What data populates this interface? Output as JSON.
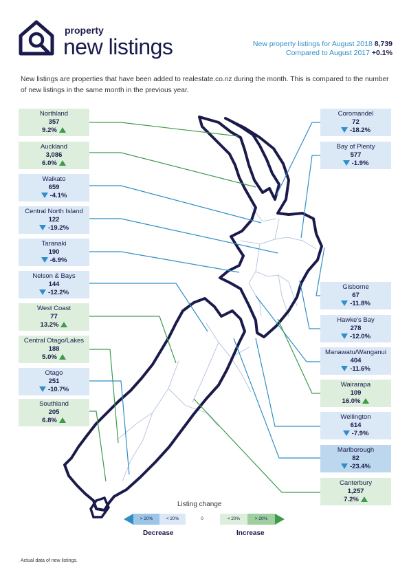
{
  "brand": {
    "small": "property",
    "big": "new listings"
  },
  "stats": {
    "line1_label": "New property listings for August 2018",
    "line1_value": "8,739",
    "line2_label": "Compared to August 2017",
    "line2_value": "+0.1%"
  },
  "intro": "New listings are properties that have been added to realestate.co.nz during the month. This is compared to the number of new listings in the same month in the previous year.",
  "colors": {
    "navy": "#1a1b4b",
    "increase": "#3d9a4b",
    "decrease": "#2f8ec7",
    "increase_bg": "#ddeedd",
    "decrease_bg": "#dbe8f6"
  },
  "regions_left": [
    {
      "name": "Northland",
      "value": "357",
      "change": "9.2%",
      "direction": "up"
    },
    {
      "name": "Auckland",
      "value": "3,086",
      "change": "6.0%",
      "direction": "up"
    },
    {
      "name": "Waikato",
      "value": "659",
      "change": "-4.1%",
      "direction": "down"
    },
    {
      "name": "Central North Island",
      "value": "122",
      "change": "-19.2%",
      "direction": "down"
    },
    {
      "name": "Taranaki",
      "value": "190",
      "change": "-6.9%",
      "direction": "down"
    },
    {
      "name": "Nelson & Bays",
      "value": "144",
      "change": "-12.2%",
      "direction": "down"
    },
    {
      "name": "West Coast",
      "value": "77",
      "change": "13.2%",
      "direction": "up"
    },
    {
      "name": "Central Otago/Lakes",
      "value": "188",
      "change": "5.0%",
      "direction": "up"
    },
    {
      "name": "Otago",
      "value": "251",
      "change": "-10.7%",
      "direction": "down"
    },
    {
      "name": "Southland",
      "value": "205",
      "change": "6.8%",
      "direction": "up"
    }
  ],
  "regions_right": [
    {
      "name": "Coromandel",
      "value": "72",
      "change": "-18.2%",
      "direction": "down"
    },
    {
      "name": "Bay of Plenty",
      "value": "577",
      "change": "-1.9%",
      "direction": "down"
    },
    {
      "name": "Gisborne",
      "value": "67",
      "change": "-11.8%",
      "direction": "down"
    },
    {
      "name": "Hawke's Bay",
      "value": "278",
      "change": "-12.0%",
      "direction": "down"
    },
    {
      "name": "Manawatu/Wanganui",
      "value": "404",
      "change": "-11.6%",
      "direction": "down"
    },
    {
      "name": "Wairarapa",
      "value": "109",
      "change": "16.0%",
      "direction": "up"
    },
    {
      "name": "Wellington",
      "value": "614",
      "change": "-7.9%",
      "direction": "down"
    },
    {
      "name": "Marlborough",
      "value": "82",
      "change": "-23.4%",
      "direction": "down"
    },
    {
      "name": "Canterbury",
      "value": "1,257",
      "change": "7.2%",
      "direction": "up"
    }
  ],
  "legend": {
    "title": "Listing change",
    "dec_big": "> 20%",
    "dec_small": "< 20%",
    "zero": "0",
    "inc_small": "< 20%",
    "inc_big": "> 20%",
    "decrease": "Decrease",
    "increase": "Increase"
  },
  "footnote": "Actual data of new listings."
}
